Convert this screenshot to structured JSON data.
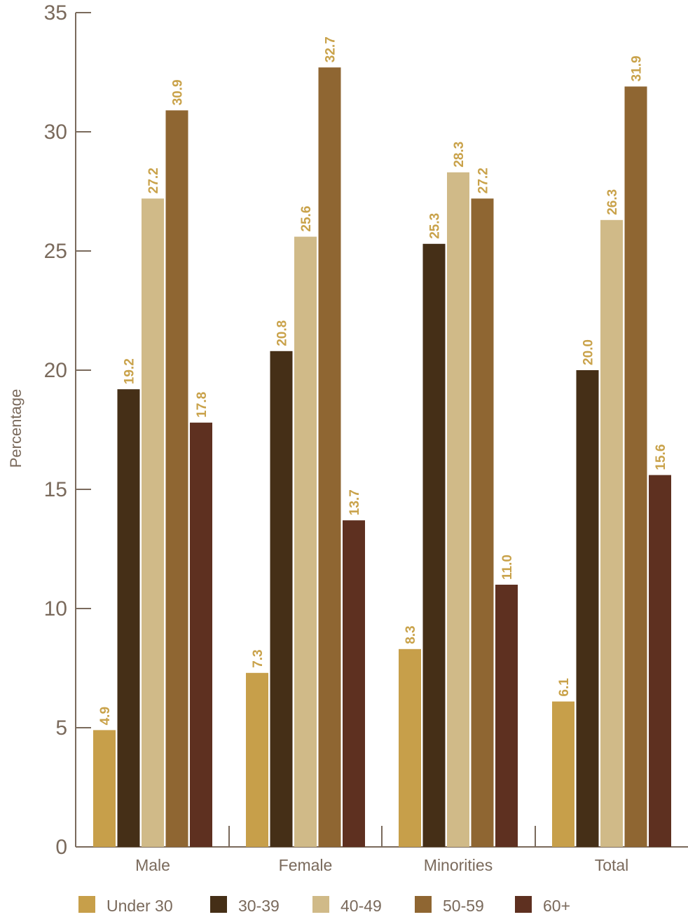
{
  "chart_data": {
    "type": "bar",
    "categories": [
      "Male",
      "Female",
      "Minorities",
      "Total"
    ],
    "series": [
      {
        "name": "Under 30",
        "color": "#c79f4a",
        "values": [
          4.9,
          7.3,
          8.3,
          6.1
        ]
      },
      {
        "name": "30-39",
        "color": "#452f17",
        "values": [
          19.2,
          20.8,
          25.3,
          20.0
        ]
      },
      {
        "name": "40-49",
        "color": "#d0ba88",
        "values": [
          27.2,
          25.6,
          28.3,
          26.3
        ]
      },
      {
        "name": "50-59",
        "color": "#8f6632",
        "values": [
          30.9,
          32.7,
          27.2,
          31.9
        ]
      },
      {
        "name": "60+",
        "color": "#5e3020",
        "values": [
          17.8,
          13.7,
          11.0,
          15.6
        ]
      }
    ],
    "ylabel": "Percentage",
    "ylim": [
      0,
      35
    ],
    "yticks": [
      "0",
      "5",
      "10",
      "15",
      "20",
      "25",
      "30",
      "35"
    ],
    "data_label_color": "#c9a24a",
    "axis_color": "#7a6a5c",
    "legend_position": "bottom",
    "grid": false
  }
}
